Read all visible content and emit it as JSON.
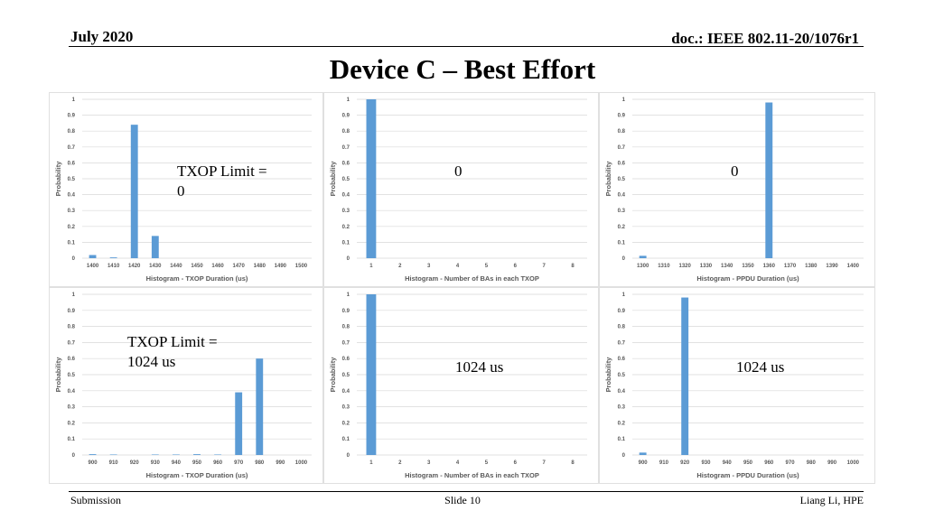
{
  "header": {
    "date": "July 2020",
    "doc": "doc.: IEEE 802.11-20/1076r1"
  },
  "title": "Device C – Best Effort",
  "footer": {
    "left": "Submission",
    "center": "Slide 10",
    "right": "Liang Li, HPE"
  },
  "overlays": {
    "txop0_label": "TXOP Limit =\n0",
    "ba0_label": "0",
    "ppdu0_label": "0",
    "txop1024_label": "TXOP Limit =\n1024 us",
    "ba1024_label": "1024 us",
    "ppdu1024_label": "1024 us"
  },
  "colors": {
    "bar": "#5b9bd5",
    "grid": "#d9d9d9",
    "axis_text": "#595959"
  },
  "chart_data": [
    {
      "type": "bar",
      "categories": [
        "1400",
        "1410",
        "1420",
        "1430",
        "1440",
        "1450",
        "1460",
        "1470",
        "1480",
        "1490",
        "1500"
      ],
      "values": [
        0.02,
        0.005,
        0.84,
        0.14,
        0,
        0,
        0,
        0,
        0,
        0,
        0
      ],
      "xlabel": "Histogram - TXOP Duration (us)",
      "ylabel": "Probability",
      "yticks": [
        "0",
        "0.1",
        "0.2",
        "0.3",
        "0.4",
        "0.5",
        "0.6",
        "0.7",
        "0.8",
        "0.9",
        "1"
      ],
      "ylim": [
        0,
        1
      ]
    },
    {
      "type": "bar",
      "categories": [
        "1",
        "2",
        "3",
        "4",
        "5",
        "6",
        "7",
        "8"
      ],
      "values": [
        1,
        0,
        0,
        0,
        0,
        0,
        0,
        0
      ],
      "xlabel": "Histogram - Number of BAs in each TXOP",
      "ylabel": "Probability",
      "yticks": [
        "0",
        "0.1",
        "0.2",
        "0.3",
        "0.4",
        "0.5",
        "0.6",
        "0.7",
        "0.8",
        "0.9",
        "1"
      ],
      "ylim": [
        0,
        1
      ]
    },
    {
      "type": "bar",
      "categories": [
        "1300",
        "1310",
        "1320",
        "1330",
        "1340",
        "1350",
        "1360",
        "1370",
        "1380",
        "1390",
        "1400"
      ],
      "values": [
        0.015,
        0,
        0,
        0,
        0,
        0,
        0.98,
        0,
        0,
        0,
        0
      ],
      "xlabel": "Histogram - PPDU Duration (us)",
      "ylabel": "Probability",
      "yticks": [
        "0",
        "0.1",
        "0.2",
        "0.3",
        "0.4",
        "0.5",
        "0.6",
        "0.7",
        "0.8",
        "0.9",
        "1"
      ],
      "ylim": [
        0,
        1
      ]
    },
    {
      "type": "bar",
      "categories": [
        "900",
        "910",
        "920",
        "930",
        "940",
        "950",
        "960",
        "970",
        "980",
        "990",
        "1000"
      ],
      "values": [
        0.005,
        0.003,
        0,
        0.003,
        0.003,
        0.005,
        0.003,
        0.39,
        0.6,
        0,
        0
      ],
      "xlabel": "Histogram - TXOP Duration (us)",
      "ylabel": "Probability",
      "yticks": [
        "0",
        "0.1",
        "0.2",
        "0.3",
        "0.4",
        "0.5",
        "0.6",
        "0.7",
        "0.8",
        "0.9",
        "1"
      ],
      "ylim": [
        0,
        1
      ]
    },
    {
      "type": "bar",
      "categories": [
        "1",
        "2",
        "3",
        "4",
        "5",
        "6",
        "7",
        "8"
      ],
      "values": [
        1,
        0,
        0,
        0,
        0,
        0,
        0,
        0
      ],
      "xlabel": "Histogram - Number of BAs in each TXOP",
      "ylabel": "Probability",
      "yticks": [
        "0",
        "0.1",
        "0.2",
        "0.3",
        "0.4",
        "0.5",
        "0.6",
        "0.7",
        "0.8",
        "0.9",
        "1"
      ],
      "ylim": [
        0,
        1
      ]
    },
    {
      "type": "bar",
      "categories": [
        "900",
        "910",
        "920",
        "930",
        "940",
        "950",
        "960",
        "970",
        "980",
        "990",
        "1000"
      ],
      "values": [
        0.015,
        0,
        0.98,
        0,
        0,
        0,
        0,
        0,
        0,
        0,
        0
      ],
      "xlabel": "Histogram - PPDU Duration (us)",
      "ylabel": "Probability",
      "yticks": [
        "0",
        "0.1",
        "0.2",
        "0.3",
        "0.4",
        "0.5",
        "0.6",
        "0.7",
        "0.8",
        "0.9",
        "1"
      ],
      "ylim": [
        0,
        1
      ]
    }
  ]
}
